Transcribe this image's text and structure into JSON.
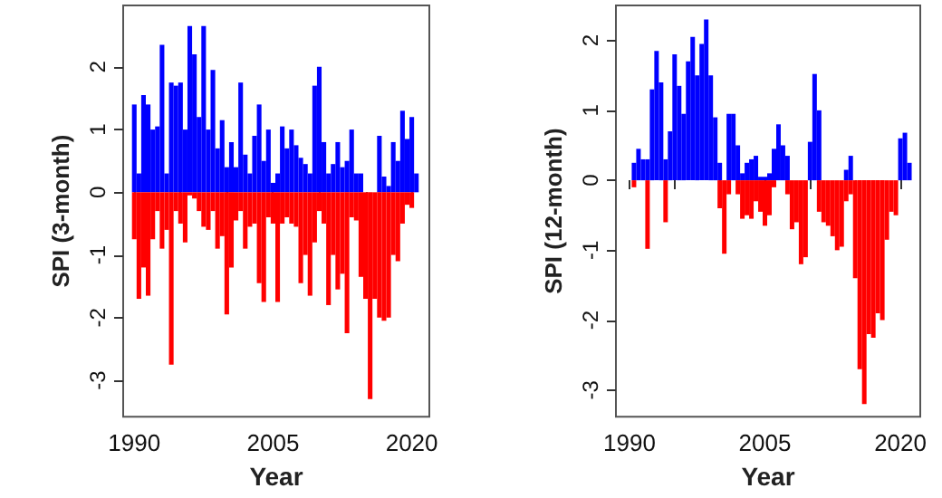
{
  "chart_data": [
    {
      "type": "bar",
      "stacked": true,
      "xlabel": "Year",
      "ylabel": "SPI (3-month)",
      "grid": false,
      "xlim": [
        1988.8,
        2021.9
      ],
      "xticks": [
        1990,
        {
          "value": 1995,
          "label": null
        },
        {
          "value": 2000,
          "label": null
        },
        2005,
        {
          "value": 2010,
          "label": null
        },
        {
          "value": 2015,
          "label": null
        },
        2020
      ],
      "ylim": [
        -3.58,
        2.98
      ],
      "yticks": [
        -3,
        -2,
        -1,
        0,
        1,
        2
      ],
      "x": [
        1990,
        1990.5,
        1991,
        1991.5,
        1992,
        1992.5,
        1993,
        1993.5,
        1994,
        1994.5,
        1995,
        1995.5,
        1996,
        1996.5,
        1997,
        1997.5,
        1998,
        1998.5,
        1999,
        1999.5,
        2000,
        2000.5,
        2001,
        2001.5,
        2002,
        2002.5,
        2003,
        2003.5,
        2004,
        2004.5,
        2005,
        2005.5,
        2006,
        2006.5,
        2007,
        2007.5,
        2008,
        2008.5,
        2009,
        2009.5,
        2010,
        2010.5,
        2011,
        2011.5,
        2012,
        2012.5,
        2013,
        2013.5,
        2014,
        2014.5,
        2015,
        2015.5,
        2016,
        2016.5,
        2017,
        2017.5,
        2018,
        2018.5,
        2019,
        2019.5,
        2020,
        2020.5
      ],
      "series": [
        {
          "color": "#0000ff",
          "values": [
            1.4,
            0.3,
            1.55,
            1.4,
            1.0,
            1.05,
            2.35,
            0.3,
            1.75,
            1.7,
            1.75,
            1.0,
            2.65,
            2.2,
            1.2,
            2.65,
            1.0,
            1.95,
            0.7,
            1.15,
            0.4,
            0.8,
            0.4,
            1.75,
            0.6,
            0.3,
            0.9,
            1.4,
            0.5,
            1.0,
            0.15,
            0.3,
            1.05,
            0.7,
            1.0,
            0.75,
            0.55,
            0.45,
            0.3,
            1.7,
            2.0,
            0.8,
            0.3,
            0.45,
            0.8,
            0.4,
            0.5,
            1.0,
            0.3,
            0.3,
            null,
            null,
            null,
            0.9,
            0.25,
            0.1,
            0.8,
            0.5,
            1.3,
            0.85,
            1.2,
            0.3
          ]
        },
        {
          "color": "#ff0000",
          "values": [
            -0.75,
            -1.7,
            -1.2,
            -1.65,
            -0.75,
            -0.3,
            -0.9,
            -0.6,
            -2.75,
            -0.3,
            -0.5,
            -0.8,
            -0.05,
            -0.1,
            -0.3,
            -0.55,
            -0.6,
            -0.3,
            -0.9,
            -0.7,
            -1.95,
            -1.2,
            -0.45,
            -0.3,
            -0.9,
            -0.55,
            -0.5,
            -1.45,
            -1.75,
            -0.4,
            -0.5,
            -1.75,
            -0.5,
            -0.4,
            -0.5,
            -0.55,
            -1.45,
            -1.0,
            -1.65,
            -0.8,
            -0.3,
            -0.5,
            -1.8,
            -1.0,
            -1.55,
            -1.3,
            -2.25,
            -0.4,
            -0.45,
            -1.35,
            -1.7,
            -3.3,
            -1.7,
            -2.0,
            -2.05,
            -2.0,
            -1.0,
            -1.1,
            -0.5,
            -0.2,
            -0.25,
            null
          ]
        }
      ]
    },
    {
      "type": "bar",
      "stacked": true,
      "xlabel": "Year",
      "ylabel": "SPI (12-month)",
      "grid": false,
      "xlim": [
        1988.5,
        2022.2
      ],
      "xticks": [
        1990,
        {
          "value": 1995,
          "label": null
        },
        {
          "value": 2000,
          "label": null
        },
        2005,
        {
          "value": 2010,
          "label": null
        },
        {
          "value": 2015,
          "label": null
        },
        2020
      ],
      "ylim": [
        -3.38,
        2.5
      ],
      "yticks": [
        -3,
        -2,
        -1,
        0,
        1,
        2
      ],
      "x": [
        1990.5,
        1991,
        1991.5,
        1992,
        1992.5,
        1993,
        1993.5,
        1994,
        1994.5,
        1995,
        1995.5,
        1996,
        1996.5,
        1997,
        1997.5,
        1998,
        1998.5,
        1999,
        1999.5,
        2000,
        2000.5,
        2001,
        2001.5,
        2002,
        2002.5,
        2003,
        2003.5,
        2004,
        2004.5,
        2005,
        2005.5,
        2006,
        2006.5,
        2007,
        2007.5,
        2008,
        2008.5,
        2009,
        2009.5,
        2010,
        2010.5,
        2011,
        2011.5,
        2012,
        2012.5,
        2013,
        2013.5,
        2014,
        2014.5,
        2015,
        2015.5,
        2016,
        2016.5,
        2017,
        2017.5,
        2018,
        2018.5,
        2019,
        2019.5,
        2020,
        2020.5,
        2021
      ],
      "series": [
        {
          "color": "#0000ff",
          "values": [
            0.25,
            0.45,
            0.3,
            0.3,
            1.3,
            1.85,
            1.4,
            0.3,
            0.7,
            1.8,
            1.35,
            0.95,
            1.7,
            2.05,
            1.5,
            1.95,
            2.3,
            1.5,
            0.9,
            0.25,
            null,
            0.95,
            0.95,
            0.5,
            0.1,
            0.25,
            0.3,
            0.35,
            0.05,
            0.05,
            0.1,
            0.45,
            0.8,
            0.5,
            0.35,
            null,
            null,
            null,
            null,
            0.55,
            1.52,
            1.0,
            null,
            null,
            null,
            null,
            null,
            0.15,
            0.35,
            null,
            null,
            null,
            null,
            null,
            null,
            null,
            null,
            null,
            null,
            0.6,
            0.68,
            0.25
          ]
        },
        {
          "color": "#ff0000",
          "values": [
            -0.1,
            null,
            null,
            -0.98,
            null,
            null,
            null,
            -0.6,
            null,
            null,
            null,
            null,
            null,
            null,
            null,
            null,
            null,
            null,
            null,
            -0.4,
            -1.05,
            -0.2,
            null,
            -0.2,
            -0.55,
            -0.5,
            -0.55,
            -0.3,
            -0.45,
            -0.65,
            -0.5,
            -0.1,
            null,
            null,
            -0.2,
            -0.7,
            -0.6,
            -1.2,
            -1.1,
            null,
            null,
            -0.45,
            -0.6,
            -0.65,
            -0.8,
            -1.0,
            -0.95,
            -0.3,
            -0.2,
            -1.4,
            -2.7,
            -3.2,
            -2.2,
            -2.25,
            -1.9,
            -2.0,
            -0.85,
            -0.45,
            -0.5,
            null,
            null,
            null
          ]
        }
      ]
    }
  ]
}
